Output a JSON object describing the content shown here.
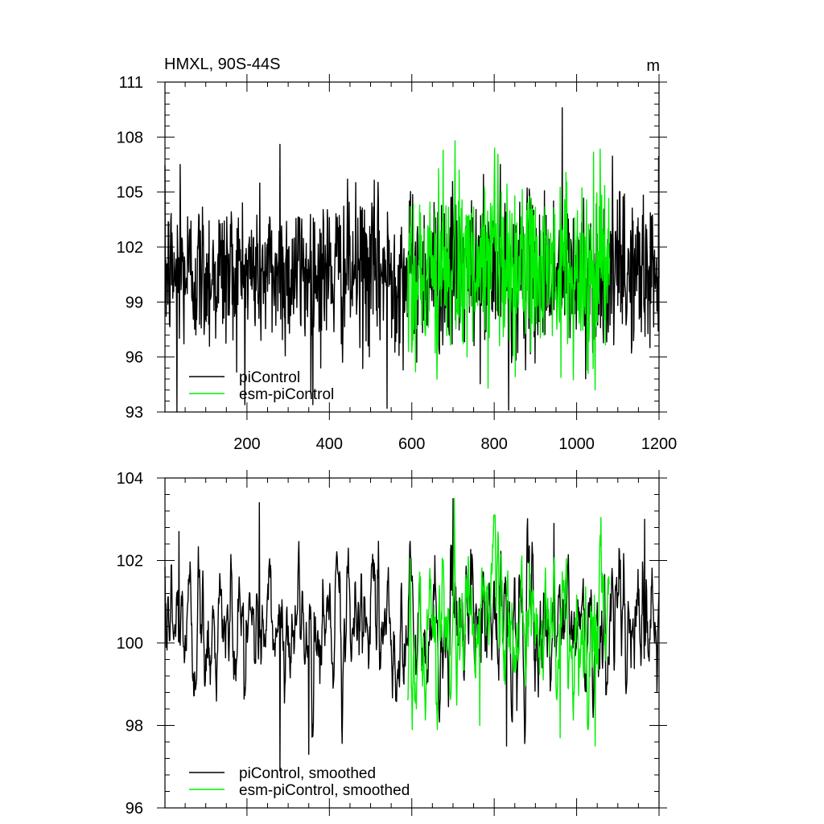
{
  "chart_data": [
    {
      "type": "line",
      "title_left": "HMXL, 90S-44S",
      "title_right": "m",
      "xlim": [
        1,
        1200
      ],
      "ylim": [
        93,
        111
      ],
      "x_ticks": [
        200,
        400,
        600,
        800,
        1000,
        1200
      ],
      "y_ticks": [
        93,
        96,
        99,
        102,
        105,
        108,
        111
      ],
      "legend_position": "bottom-left",
      "series": [
        {
          "name": "piControl",
          "color": "#000000",
          "x_range": [
            1,
            1200
          ],
          "mean": 100.6,
          "std": 2.1,
          "min": 93.0,
          "max": 109.6,
          "peaks": [
            [
              30,
              93.0
            ],
            [
              38,
              106.5
            ],
            [
              280,
              107.6
            ],
            [
              355,
              94.0
            ],
            [
              540,
              93.2
            ],
            [
              835,
              93.1
            ],
            [
              965,
              109.6
            ]
          ]
        },
        {
          "name": "esm-piControl",
          "color": "#00ee00",
          "x_range": [
            590,
            1080
          ],
          "mean": 100.8,
          "std": 2.4,
          "min": 94.2,
          "max": 107.8,
          "peaks": [
            [
              705,
              107.8
            ],
            [
              715,
              106.2
            ],
            [
              785,
              94.3
            ],
            [
              1045,
              94.2
            ]
          ]
        }
      ]
    },
    {
      "type": "line",
      "xlim": [
        1,
        1200
      ],
      "ylim": [
        96,
        104
      ],
      "y_ticks": [
        96,
        98,
        100,
        102,
        104
      ],
      "legend_position": "bottom-left",
      "series": [
        {
          "name": "piControl, smoothed",
          "color": "#000000",
          "x_range": [
            1,
            1200
          ],
          "mean": 100.4,
          "std": 0.85,
          "min": 96.9,
          "max": 103.5,
          "peaks": [
            [
              35,
              102.7
            ],
            [
              230,
              103.4
            ],
            [
              280,
              96.9
            ],
            [
              350,
              97.3
            ],
            [
              700,
              103.5
            ],
            [
              830,
              97.5
            ],
            [
              945,
              102.9
            ],
            [
              1165,
              103.0
            ],
            [
              1195,
              98.8
            ]
          ]
        },
        {
          "name": "esm-piControl, smoothed",
          "color": "#00ee00",
          "x_range": [
            590,
            1080
          ],
          "mean": 100.4,
          "std": 1.0,
          "min": 97.5,
          "max": 103.5,
          "peaks": [
            [
              703,
              103.5
            ],
            [
              765,
              98.0
            ],
            [
              960,
              97.7
            ],
            [
              1045,
              97.5
            ]
          ]
        }
      ]
    }
  ]
}
